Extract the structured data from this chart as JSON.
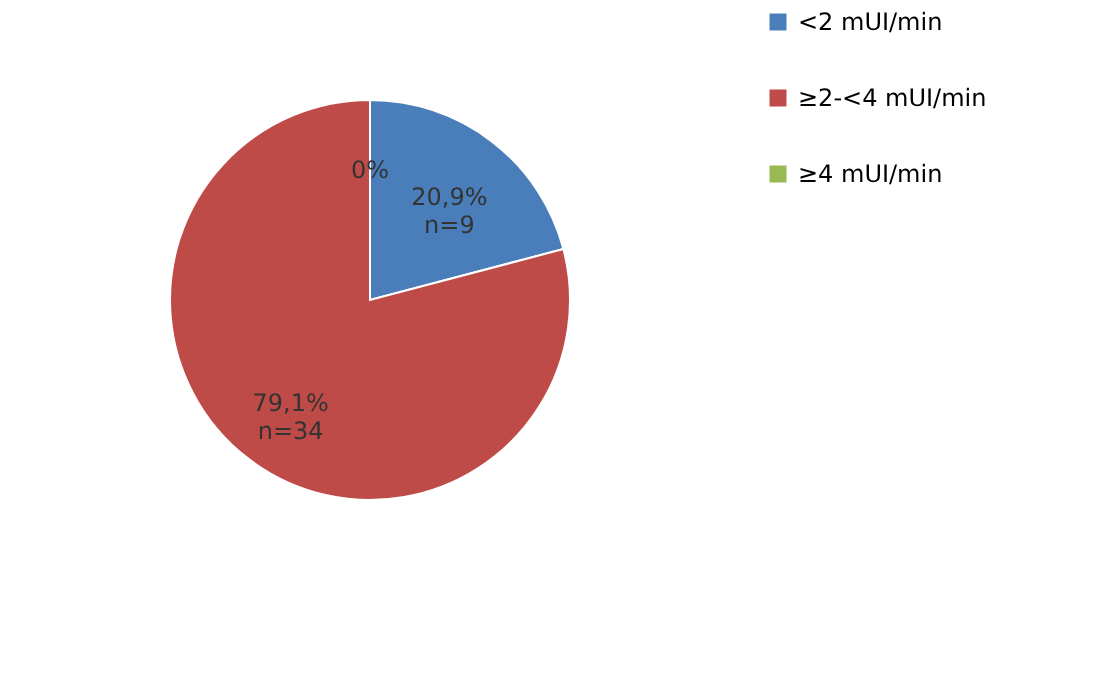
{
  "chart_data": {
    "type": "pie",
    "categories": [
      "<2 mUI/min",
      "≥2-<4 mUI/min",
      "≥4 mUI/min"
    ],
    "values": [
      20.9,
      79.1,
      0
    ],
    "colors": [
      "#4a7ebb",
      "#be4b48",
      "#98b954"
    ],
    "value_labels": [
      "20,9%\nn=9",
      "79,1%\nn=34",
      "0%"
    ],
    "legend": "right"
  }
}
